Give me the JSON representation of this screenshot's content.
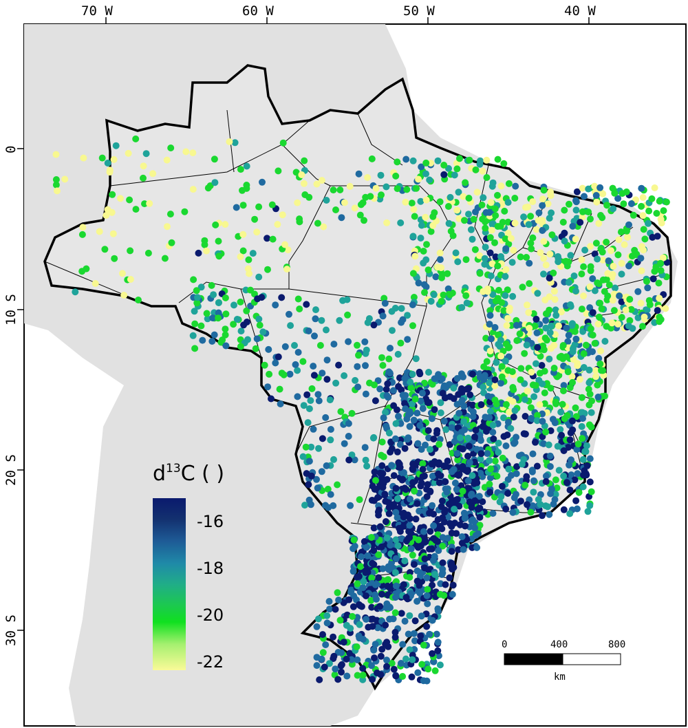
{
  "axes": {
    "lon_labels": [
      "70 W",
      "60 W",
      "50 W",
      "40 W"
    ],
    "lat_labels": [
      "0",
      "10 S",
      "20 S",
      "30 S"
    ]
  },
  "legend": {
    "title_main": "d",
    "title_sup": "13",
    "title_rest": "C (  )",
    "ticks": [
      "-16",
      "-18",
      "-20",
      "-22"
    ],
    "range": [
      -15,
      -22.5
    ],
    "colors": [
      "#0a1a6e",
      "#1e4e94",
      "#1f7da6",
      "#1fa39a",
      "#22b86a",
      "#1ad830",
      "#5ee85e",
      "#c8f07a",
      "#f8f890"
    ]
  },
  "scale_bar": {
    "labels": [
      "0",
      "400",
      "800"
    ],
    "unit": "km"
  },
  "colors": {
    "land_background": "#e1e1e1",
    "state_fill": "#e6e6e6",
    "dot_dark": "#0a1a6e",
    "dot_blue": "#1f6aa0",
    "dot_teal": "#1fa39a",
    "dot_green": "#1ad830",
    "dot_yellow": "#f8f890"
  }
}
